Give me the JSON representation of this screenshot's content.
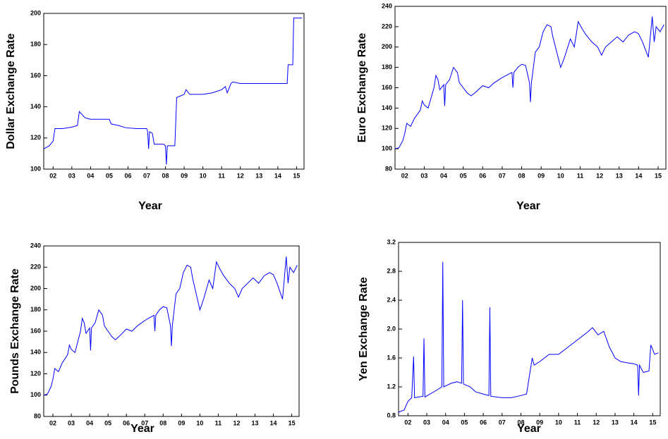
{
  "chart_data": [
    {
      "type": "line",
      "y_label": "Dollar Exchange Rate",
      "x_label": "Year",
      "color": "#0000ff",
      "xlim": [
        1.5,
        15.4
      ],
      "ylim": [
        100,
        200
      ],
      "yticks": [
        100,
        120,
        140,
        160,
        180,
        200
      ],
      "xticks": [
        {
          "value": 2,
          "label": "02"
        },
        {
          "value": 3,
          "label": "03"
        },
        {
          "value": 4,
          "label": "04"
        },
        {
          "value": 5,
          "label": "05"
        },
        {
          "value": 6,
          "label": "06"
        },
        {
          "value": 7,
          "label": "07"
        },
        {
          "value": 8,
          "label": "08"
        },
        {
          "value": 9,
          "label": "09"
        },
        10,
        11,
        12,
        13,
        14,
        15
      ],
      "x": [
        1.5,
        1.8,
        2.0,
        2.1,
        2.5,
        3.0,
        3.3,
        3.4,
        3.7,
        4.0,
        4.5,
        5.0,
        5.1,
        5.5,
        5.9,
        6.5,
        7.0,
        7.05,
        7.1,
        7.15,
        7.3,
        7.4,
        7.9,
        8.0,
        8.05,
        8.1,
        8.5,
        8.55,
        8.6,
        8.8,
        9.0,
        9.1,
        9.3,
        10.0,
        10.5,
        11.0,
        11.2,
        11.3,
        11.5,
        11.6,
        12.0,
        14.3,
        14.5,
        14.55,
        14.8,
        14.85,
        15.3
      ],
      "values": [
        113,
        115,
        118,
        126,
        126,
        127,
        128,
        137,
        133,
        132,
        132,
        132,
        129,
        128,
        126.5,
        126,
        126,
        124,
        113,
        124,
        123,
        116,
        116,
        115,
        103,
        115,
        115,
        130,
        146,
        147,
        148,
        151,
        148,
        148,
        149,
        151,
        153,
        149,
        155,
        156,
        155,
        155,
        155,
        167,
        167,
        197,
        197
      ]
    },
    {
      "type": "line",
      "y_label": "Euro Exchange Rate",
      "x_label": "Year",
      "color": "#0000ff",
      "xlim": [
        1.5,
        15.4
      ],
      "ylim": [
        80,
        240
      ],
      "yticks": [
        80,
        100,
        120,
        140,
        160,
        180,
        200,
        220,
        240
      ],
      "xticks": [
        {
          "value": 2,
          "label": "02"
        },
        {
          "value": 3,
          "label": "03"
        },
        {
          "value": 4,
          "label": "04"
        },
        {
          "value": 5,
          "label": "05"
        },
        {
          "value": 6,
          "label": "06"
        },
        {
          "value": 7,
          "label": "07"
        },
        {
          "value": 8,
          "label": "08"
        },
        {
          "value": 9,
          "label": "09"
        },
        10,
        11,
        12,
        13,
        14,
        15
      ],
      "x": [
        1.5,
        1.7,
        1.9,
        2.0,
        2.1,
        2.3,
        2.5,
        2.8,
        2.9,
        3.0,
        3.2,
        3.5,
        3.6,
        3.7,
        3.8,
        4.0,
        4.05,
        4.1,
        4.3,
        4.5,
        4.7,
        4.8,
        5.0,
        5.2,
        5.4,
        5.6,
        6.0,
        6.3,
        6.6,
        7.0,
        7.3,
        7.5,
        7.55,
        7.6,
        7.8,
        8.0,
        8.2,
        8.4,
        8.45,
        8.5,
        8.6,
        8.7,
        8.9,
        9.1,
        9.3,
        9.5,
        9.6,
        9.8,
        10.0,
        10.2,
        10.5,
        10.7,
        10.9,
        11.1,
        11.3,
        11.6,
        11.9,
        12.1,
        12.3,
        12.6,
        12.9,
        13.2,
        13.5,
        13.8,
        14.0,
        14.2,
        14.4,
        14.5,
        14.6,
        14.7,
        14.8,
        14.9,
        15.1,
        15.3
      ],
      "values": [
        100,
        101,
        108,
        115,
        125,
        122,
        130,
        138,
        147,
        143,
        140,
        160,
        172,
        168,
        158,
        163,
        142,
        163,
        168,
        180,
        175,
        165,
        160,
        155,
        152,
        155,
        162,
        160,
        165,
        170,
        173,
        175,
        160,
        175,
        180,
        183,
        182,
        165,
        146,
        165,
        180,
        195,
        200,
        215,
        222,
        220,
        210,
        195,
        180,
        190,
        208,
        200,
        225,
        218,
        212,
        205,
        200,
        192,
        200,
        205,
        210,
        205,
        212,
        215,
        213,
        205,
        195,
        190,
        210,
        230,
        205,
        220,
        215,
        222
      ]
    },
    {
      "type": "line",
      "y_label": "Pounds Exchange Rate",
      "x_label": "Year",
      "color": "#0000ff",
      "xlim": [
        1.5,
        15.4
      ],
      "ylim": [
        80,
        240
      ],
      "yticks": [
        80,
        100,
        120,
        140,
        160,
        180,
        200,
        220,
        240
      ],
      "xticks": [
        {
          "value": 2,
          "label": "02"
        },
        {
          "value": 3,
          "label": "03"
        },
        {
          "value": 4,
          "label": "04"
        },
        {
          "value": 5,
          "label": "05"
        },
        {
          "value": 6,
          "label": "06"
        },
        {
          "value": 7,
          "label": "07"
        },
        {
          "value": 8,
          "label": "08"
        },
        {
          "value": 9,
          "label": "09"
        },
        10,
        11,
        12,
        13,
        14,
        15
      ],
      "x": [
        1.5,
        1.7,
        1.9,
        2.0,
        2.1,
        2.3,
        2.5,
        2.8,
        2.9,
        3.0,
        3.2,
        3.5,
        3.6,
        3.7,
        3.8,
        4.0,
        4.05,
        4.1,
        4.3,
        4.5,
        4.7,
        4.8,
        5.0,
        5.2,
        5.4,
        5.6,
        6.0,
        6.3,
        6.6,
        7.0,
        7.3,
        7.5,
        7.55,
        7.6,
        7.8,
        8.0,
        8.2,
        8.4,
        8.45,
        8.5,
        8.6,
        8.7,
        8.9,
        9.1,
        9.3,
        9.5,
        9.6,
        9.8,
        10.0,
        10.2,
        10.5,
        10.7,
        10.9,
        11.1,
        11.3,
        11.6,
        11.9,
        12.1,
        12.3,
        12.6,
        12.9,
        13.2,
        13.5,
        13.8,
        14.0,
        14.2,
        14.4,
        14.5,
        14.6,
        14.7,
        14.8,
        14.9,
        15.1,
        15.3
      ],
      "values": [
        100,
        101,
        108,
        115,
        125,
        122,
        130,
        138,
        147,
        143,
        140,
        160,
        172,
        168,
        158,
        163,
        142,
        163,
        168,
        180,
        175,
        165,
        160,
        155,
        152,
        155,
        162,
        160,
        165,
        170,
        173,
        175,
        160,
        175,
        180,
        183,
        182,
        165,
        146,
        165,
        180,
        195,
        200,
        215,
        222,
        220,
        210,
        195,
        180,
        190,
        208,
        200,
        225,
        218,
        212,
        205,
        200,
        192,
        200,
        205,
        210,
        205,
        212,
        215,
        213,
        205,
        195,
        190,
        210,
        230,
        205,
        220,
        215,
        222
      ]
    },
    {
      "type": "line",
      "y_label": "Yen Exchange Rate",
      "x_label": "Year",
      "color": "#0000ff",
      "xlim": [
        1.5,
        15.4
      ],
      "ylim": [
        0.8,
        3.2
      ],
      "yticks": [
        0.8,
        1.2,
        1.6,
        {
          "value": 2,
          "label": "2.0"
        },
        2.4,
        2.8,
        3.2
      ],
      "xticks": [
        {
          "value": 2,
          "label": "02"
        },
        {
          "value": 3,
          "label": "03"
        },
        {
          "value": 4,
          "label": "04"
        },
        {
          "value": 5,
          "label": "05"
        },
        {
          "value": 6,
          "label": "06"
        },
        {
          "value": 7,
          "label": "07"
        },
        {
          "value": 8,
          "label": "08"
        },
        {
          "value": 9,
          "label": "09"
        },
        10,
        11,
        12,
        13,
        14,
        15
      ],
      "x": [
        1.5,
        1.8,
        2.0,
        2.2,
        2.3,
        2.35,
        2.8,
        2.85,
        2.9,
        3.5,
        3.8,
        3.85,
        3.9,
        4.3,
        4.6,
        4.85,
        4.9,
        4.95,
        5.3,
        5.6,
        6.0,
        6.3,
        6.35,
        6.4,
        7.0,
        7.5,
        8.0,
        8.3,
        8.6,
        8.7,
        9.0,
        9.5,
        10.0,
        10.5,
        11.0,
        11.5,
        11.8,
        12.1,
        12.4,
        12.7,
        13.0,
        13.3,
        13.7,
        14.0,
        14.2,
        14.25,
        14.3,
        14.5,
        14.8,
        14.9,
        15.1,
        15.3
      ],
      "values": [
        0.85,
        0.88,
        1.0,
        1.05,
        1.62,
        1.05,
        1.07,
        1.87,
        1.06,
        1.15,
        1.2,
        2.93,
        1.2,
        1.25,
        1.27,
        1.25,
        2.4,
        1.24,
        1.2,
        1.13,
        1.1,
        1.08,
        2.3,
        1.07,
        1.05,
        1.05,
        1.08,
        1.1,
        1.6,
        1.5,
        1.55,
        1.65,
        1.65,
        1.75,
        1.85,
        1.95,
        2.02,
        1.92,
        1.97,
        1.75,
        1.6,
        1.55,
        1.53,
        1.52,
        1.5,
        1.08,
        1.5,
        1.4,
        1.42,
        1.78,
        1.65,
        1.67
      ]
    }
  ]
}
